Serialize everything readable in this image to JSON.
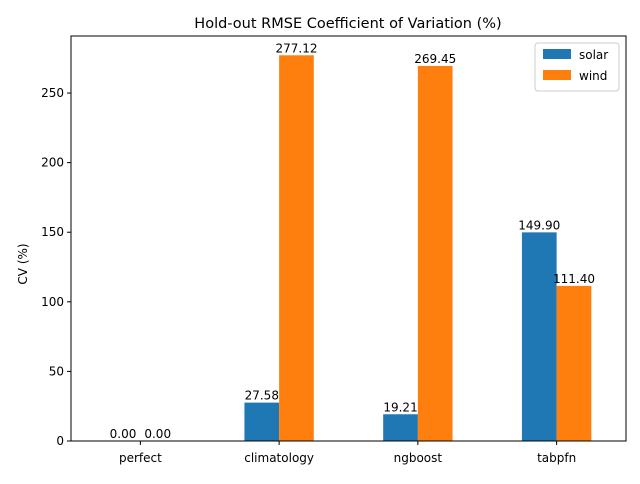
{
  "chart_data": {
    "type": "bar",
    "title": "Hold-out RMSE Coefficient of Variation (%)",
    "xlabel": "",
    "ylabel": "CV (%)",
    "categories": [
      "perfect",
      "climatology",
      "ngboost",
      "tabpfn"
    ],
    "series": [
      {
        "name": "solar",
        "color": "#1f77b4",
        "values": [
          0.0,
          27.58,
          19.21,
          149.9
        ]
      },
      {
        "name": "wind",
        "color": "#ff7f0e",
        "values": [
          0.0,
          277.12,
          269.45,
          111.4
        ]
      }
    ],
    "value_labels": {
      "solar": [
        "0.00",
        "27.58",
        "19.21",
        "149.90"
      ],
      "wind": [
        "0.00",
        "277.12",
        "269.45",
        "111.40"
      ]
    },
    "ylim": [
      0,
      290.98
    ],
    "yticks": [
      0,
      50,
      100,
      150,
      200,
      250
    ],
    "grid": false,
    "legend_position": "top-right"
  }
}
